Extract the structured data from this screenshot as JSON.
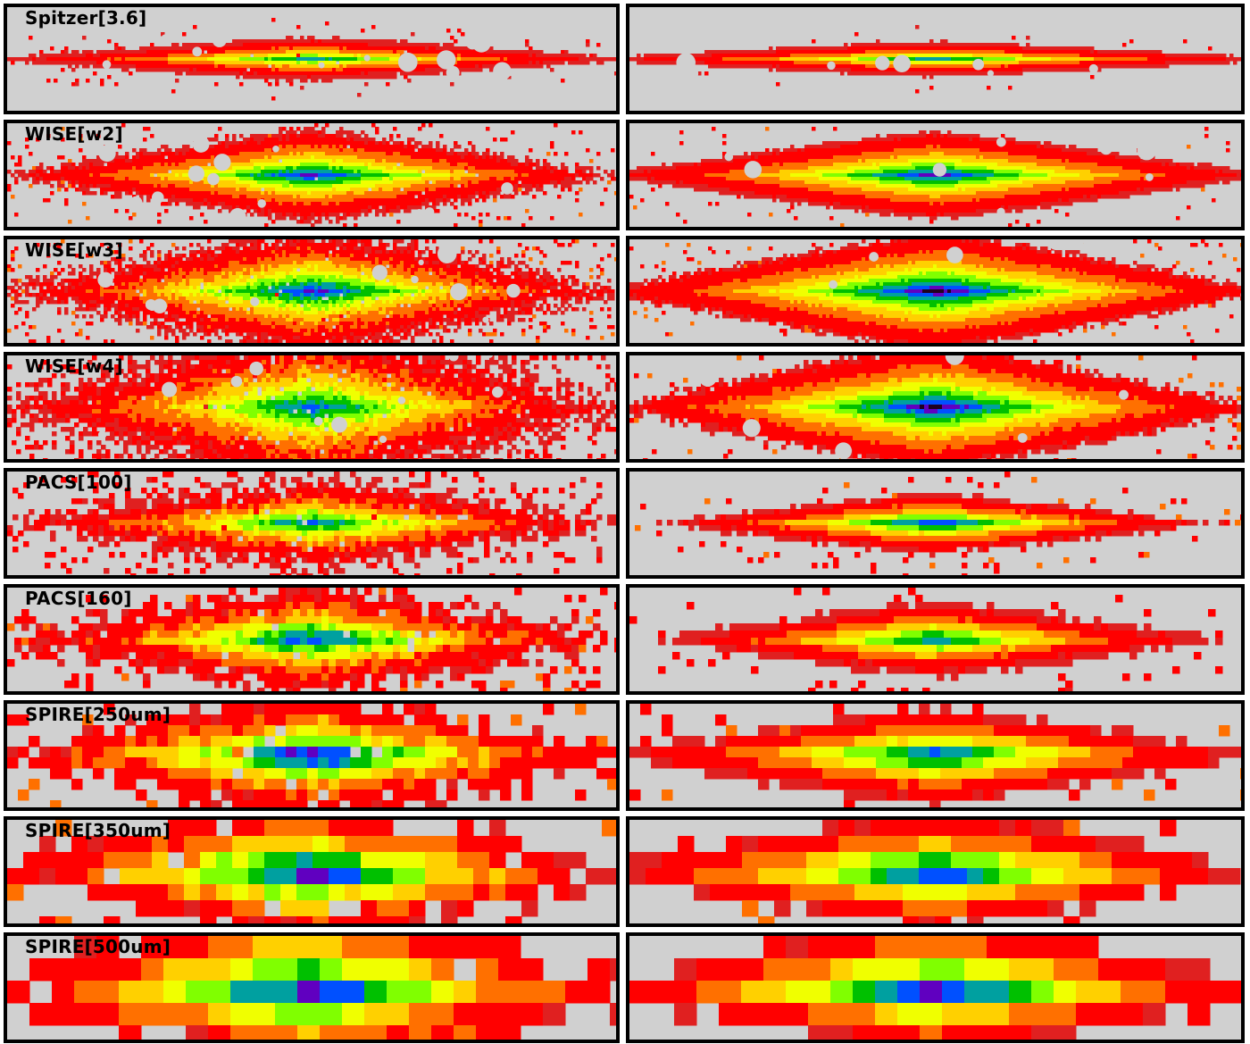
{
  "colors": {
    "background": "#d0d0d0",
    "frame": "#000000",
    "colormap": [
      "#d0d0d0",
      "#e8b0b0",
      "#e02020",
      "#ff0000",
      "#ff7000",
      "#ffd000",
      "#f0ff00",
      "#80ff00",
      "#00c000",
      "#00a0a0",
      "#0050ff",
      "#6000c0",
      "#200020"
    ]
  },
  "panels": [
    {
      "label": "Spitzer[3.6]"
    },
    {
      "label": "WISE[w2]"
    },
    {
      "label": "WISE[w3]"
    },
    {
      "label": "WISE[w4]"
    },
    {
      "label": "PACS[100]"
    },
    {
      "label": "PACS[160]"
    },
    {
      "label": "SPIRE[250um]"
    },
    {
      "label": "SPIRE[350um]"
    },
    {
      "label": "SPIRE[500um]"
    }
  ]
}
